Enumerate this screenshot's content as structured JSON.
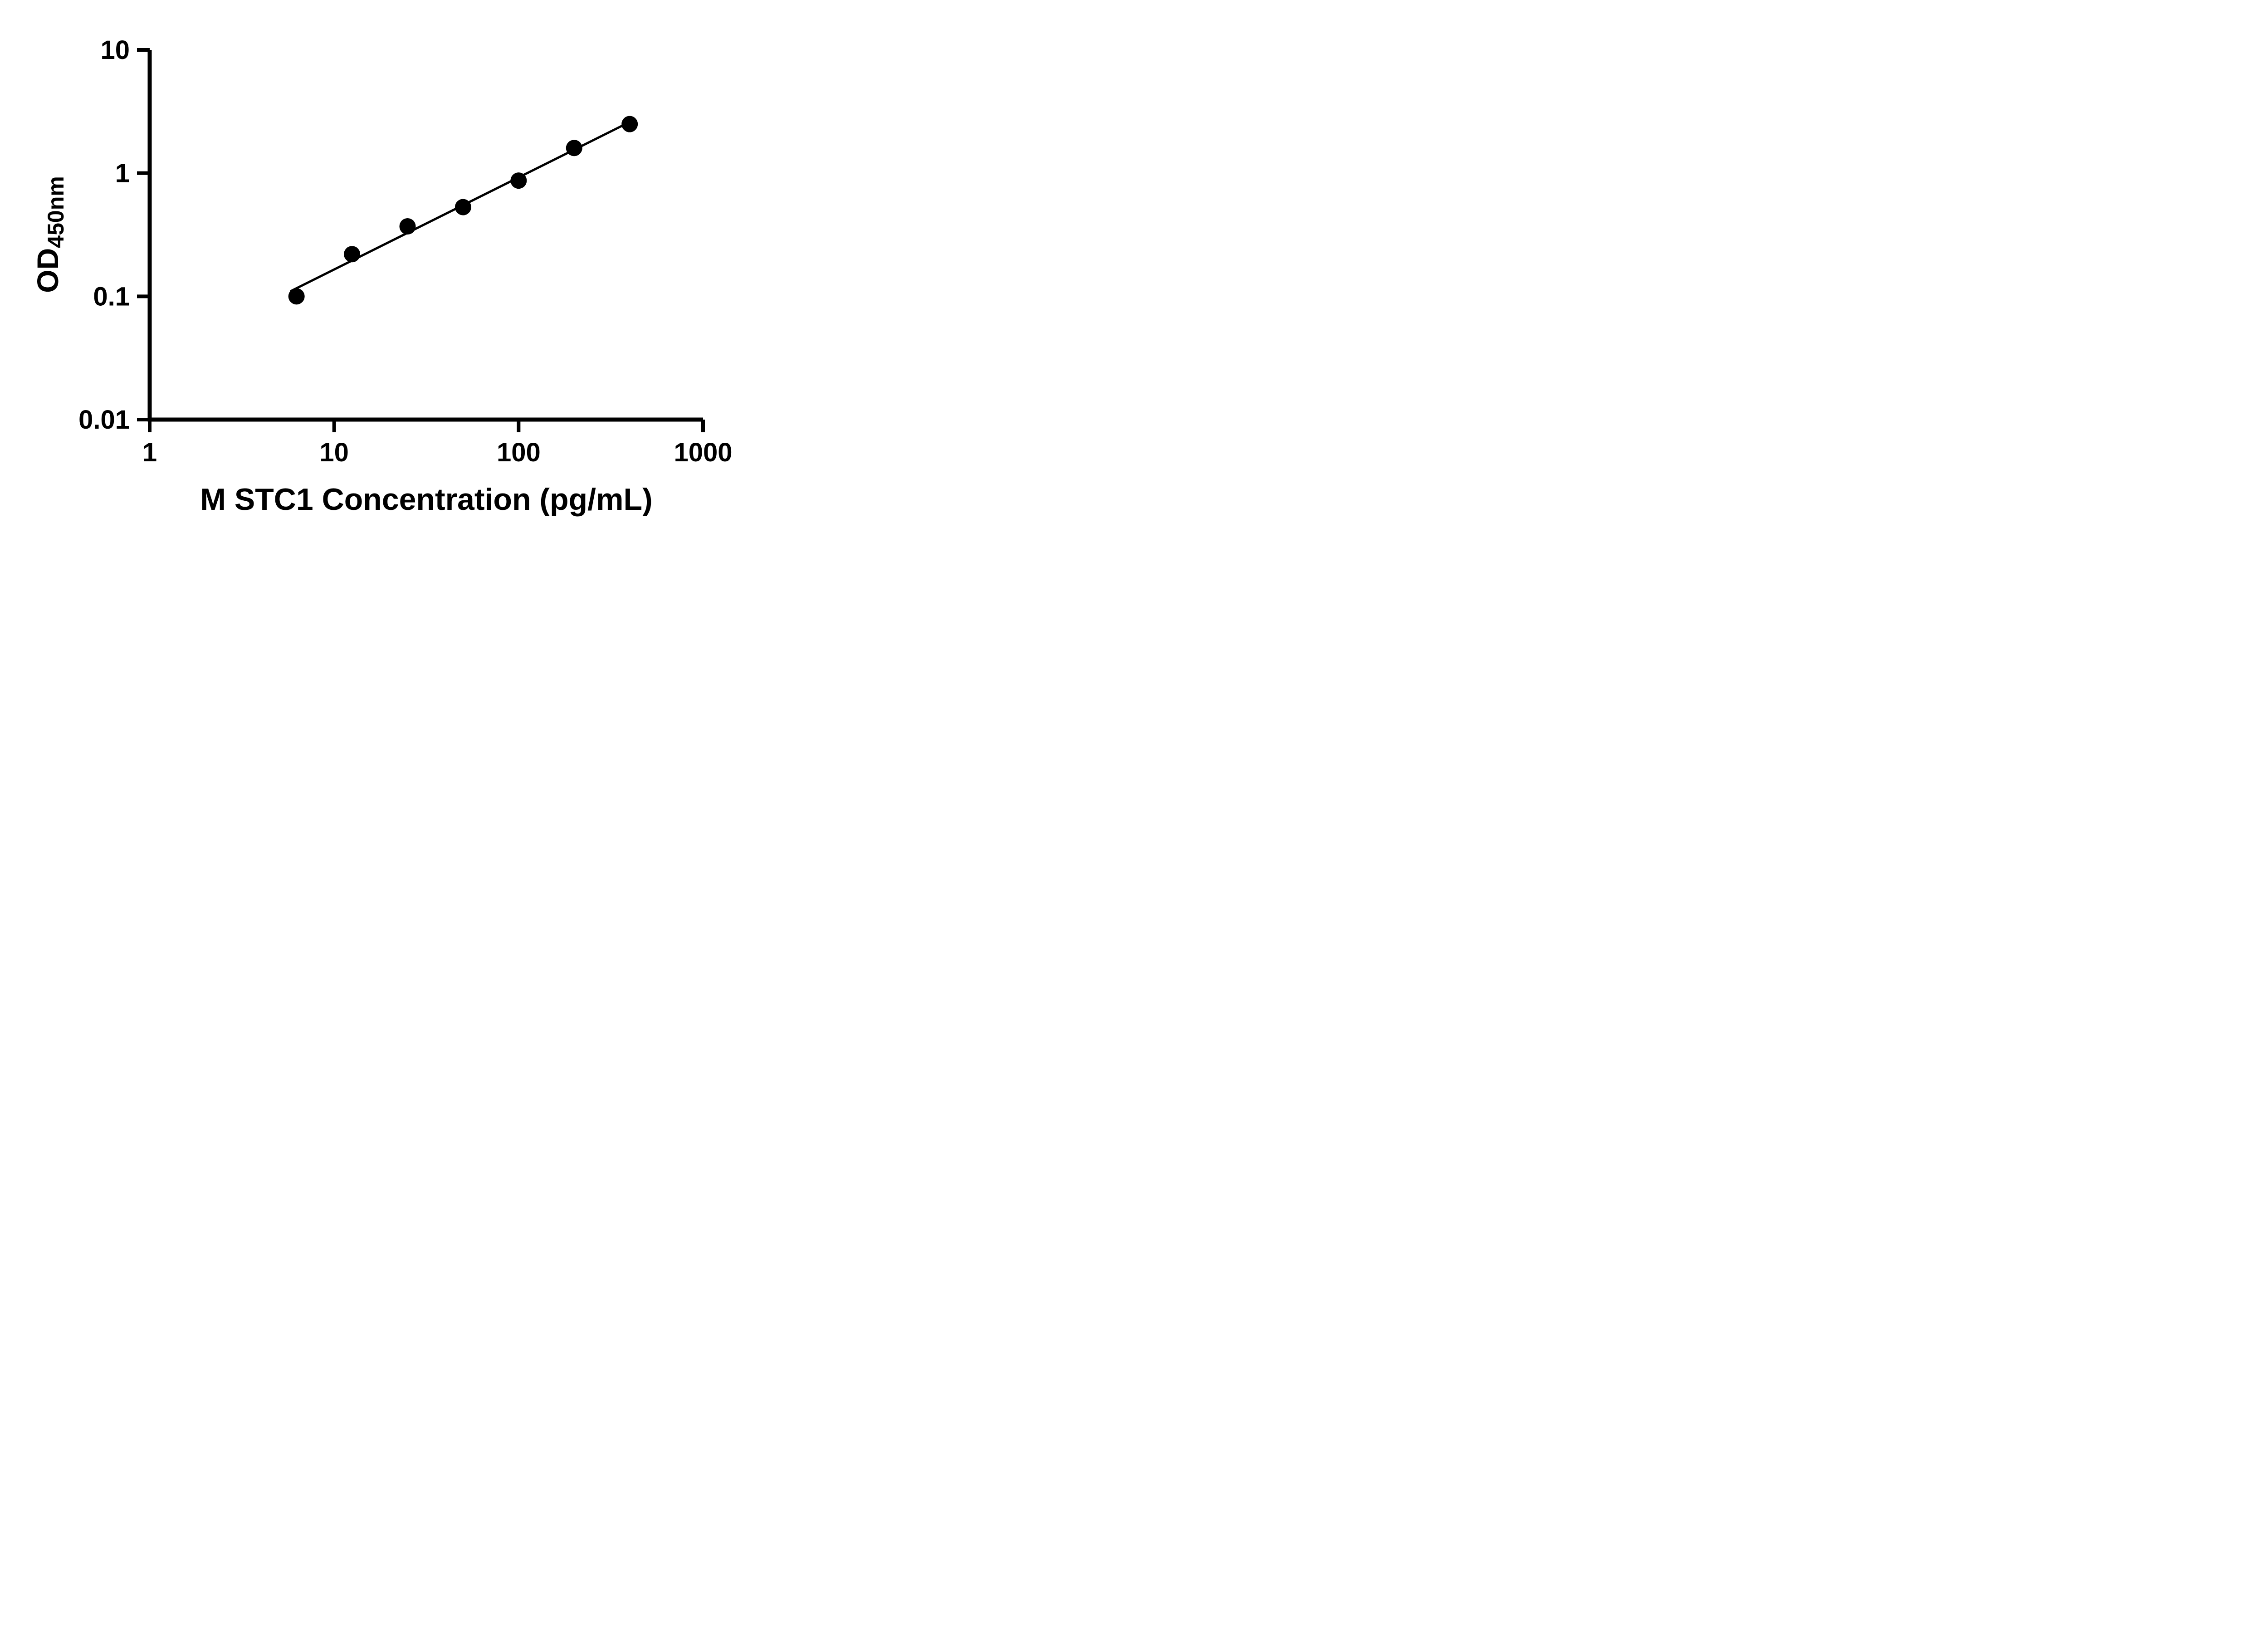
{
  "page": {
    "background_color": "#ffffff"
  },
  "chart_data": {
    "type": "scatter",
    "xlabel": "M STC1 Concentration (pg/mL)",
    "ylabel_main": "OD",
    "ylabel_sub": "450nm",
    "x_scale": "log10",
    "y_scale": "log10",
    "xlim": [
      1,
      1000
    ],
    "ylim": [
      0.01,
      10
    ],
    "x_ticks": [
      1,
      10,
      100,
      1000
    ],
    "x_tick_labels": [
      "1",
      "10",
      "100",
      "1000"
    ],
    "y_ticks": [
      0.01,
      0.1,
      1,
      10
    ],
    "y_tick_labels": [
      "0.01",
      "0.1",
      "1",
      "10"
    ],
    "grid": false,
    "legend": "none",
    "axis_color": "#000000",
    "marker_color": "#000000",
    "line_color": "#000000",
    "series": [
      {
        "marker": "filled-circle",
        "points": [
          {
            "x": 6.25,
            "y": 0.1
          },
          {
            "x": 12.5,
            "y": 0.22
          },
          {
            "x": 25,
            "y": 0.37
          },
          {
            "x": 50,
            "y": 0.53
          },
          {
            "x": 100,
            "y": 0.87
          },
          {
            "x": 200,
            "y": 1.6
          },
          {
            "x": 400,
            "y": 2.5
          }
        ]
      }
    ],
    "trendline": {
      "x1": 5.8,
      "y1": 0.11,
      "x2": 400,
      "y2": 2.6
    }
  }
}
